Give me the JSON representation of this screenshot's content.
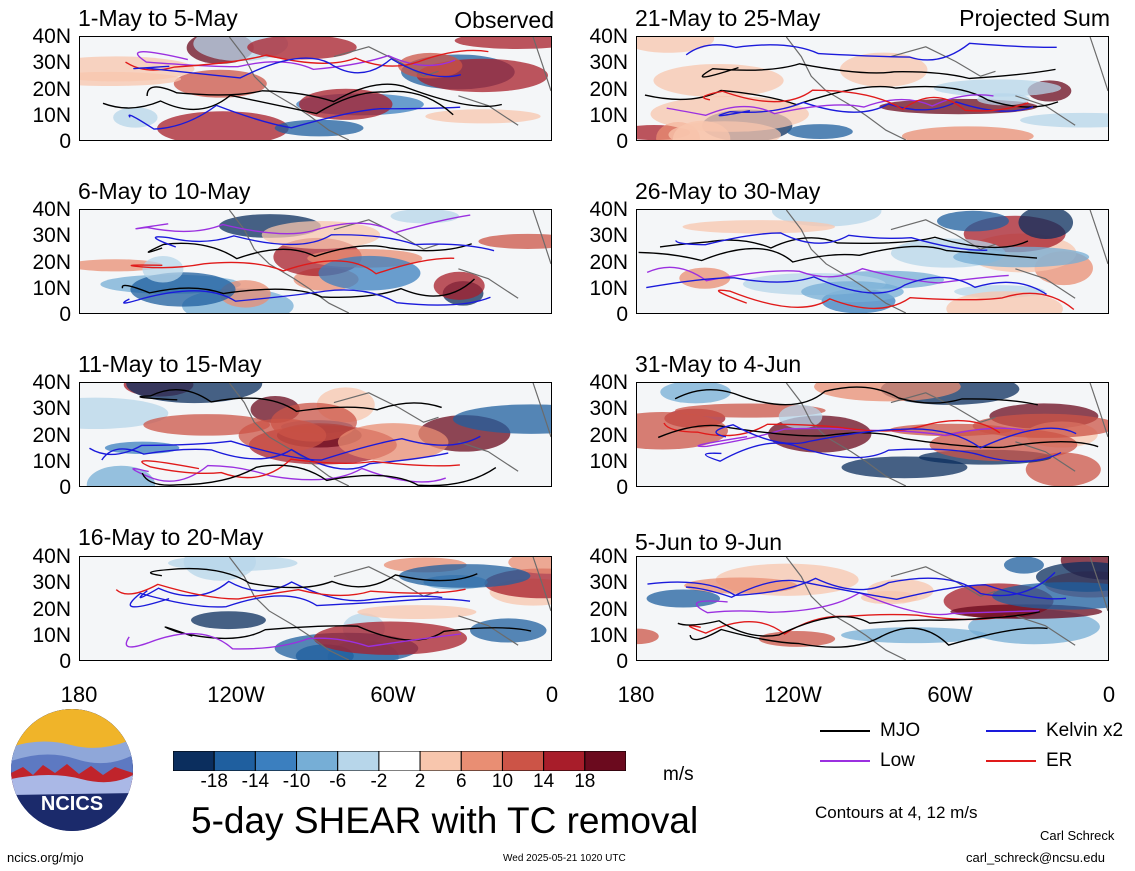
{
  "panels_left": [
    {
      "title": "1-May to 5-May",
      "tag": "Observed"
    },
    {
      "title": "6-May to 10-May",
      "tag": ""
    },
    {
      "title": "11-May to 15-May",
      "tag": ""
    },
    {
      "title": "16-May to 20-May",
      "tag": ""
    }
  ],
  "panels_right": [
    {
      "title": "21-May to 25-May",
      "tag": "Projected Sum"
    },
    {
      "title": "26-May to 30-May",
      "tag": ""
    },
    {
      "title": "31-May to 4-Jun",
      "tag": ""
    },
    {
      "title": "5-Jun to 9-Jun",
      "tag": ""
    }
  ],
  "lat_labels": [
    "40N",
    "30N",
    "20N",
    "10N",
    "0"
  ],
  "lon_labels": [
    "180",
    "120W",
    "60W",
    "0"
  ],
  "colorbar": {
    "ticks": [
      "-18",
      "-14",
      "-10",
      "-6",
      "-2",
      "2",
      "6",
      "10",
      "14",
      "18"
    ],
    "colors": [
      "#0b2e5e",
      "#1f5f9f",
      "#3b7fbf",
      "#76aed6",
      "#b7d6ea",
      "#ffffff",
      "#f8c6ad",
      "#e98e73",
      "#cc5447",
      "#a81d2a",
      "#6b0a1e"
    ],
    "units": "m/s",
    "title": "5-day SHEAR with TC removal"
  },
  "legend": {
    "items": [
      {
        "label": "MJO",
        "color": "#000000"
      },
      {
        "label": "Kelvin x2",
        "color": "#1a1adb"
      },
      {
        "label": "Low",
        "color": "#9b30e0"
      },
      {
        "label": "ER",
        "color": "#e01a1a"
      }
    ],
    "note": "Contours at 4, 12 m/s"
  },
  "logo_text": "NCICS",
  "footer": {
    "url": "ncics.org/mjo",
    "timestamp": "Wed 2025-05-21 1020 UTC",
    "author": "Carl Schreck",
    "email": "carl_schreck@ncsu.edu"
  }
}
